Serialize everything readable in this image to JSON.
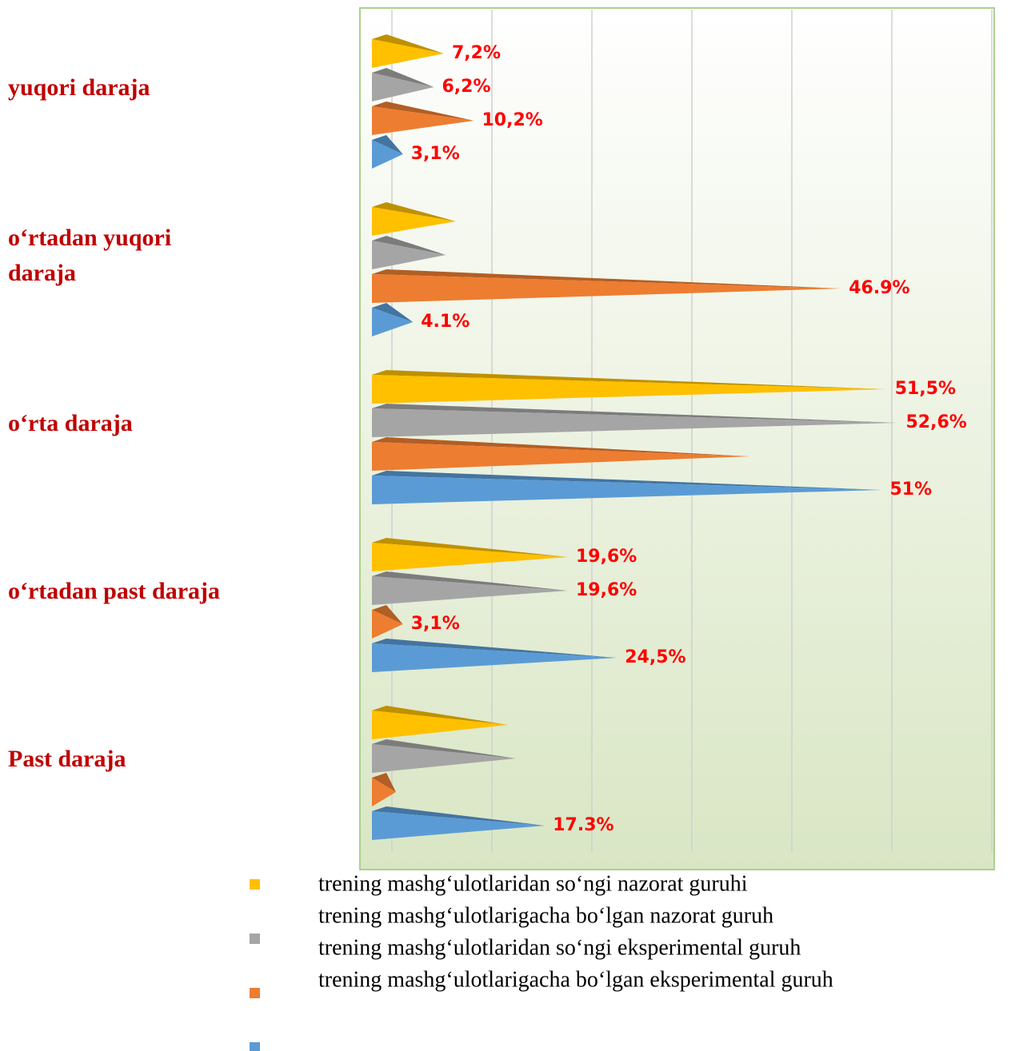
{
  "chart_data": {
    "type": "cone-bar",
    "categories": [
      "yuqori daraja",
      "o‘rtadan yuqori daraja",
      "o‘rta daraja",
      "o‘rtadan past daraja",
      "Past daraja"
    ],
    "series": [
      {
        "name": "trening mashg‘ulotlaridan so‘ngi nazorat guruhi",
        "color": "#ffc000",
        "values": [
          7.2,
          8.4,
          51.5,
          19.6,
          13.6
        ],
        "value_labels": [
          "7,2%",
          null,
          "51,5%",
          "19,6%",
          null
        ]
      },
      {
        "name": "trening mashg‘ulotlarigacha bo‘lgan nazorat guruh",
        "color": "#a5a5a5",
        "values": [
          6.2,
          7.4,
          52.6,
          19.6,
          14.4
        ],
        "value_labels": [
          "6,2%",
          null,
          "52,6%",
          "19,6%",
          null
        ]
      },
      {
        "name": "trening mashg‘ulotlaridan so‘ngi eksperimental guruh",
        "color": "#ed7d31",
        "values": [
          10.2,
          46.9,
          37.8,
          3.1,
          2.4
        ],
        "value_labels": [
          "10,2%",
          "46.9%",
          null,
          "3,1%",
          null
        ]
      },
      {
        "name": "trening mashg‘ulotlarigacha bo‘lgan eksperimental guruh",
        "color": "#5b9bd5",
        "values": [
          3.1,
          4.1,
          51,
          24.5,
          17.3
        ],
        "value_labels": [
          "3,1%",
          "4.1%",
          "51%",
          "24,5%",
          "17.3%"
        ]
      }
    ],
    "xlim": [
      0,
      60
    ],
    "xticks": [
      0,
      10,
      20,
      30,
      40,
      50,
      60
    ],
    "grid": true
  }
}
